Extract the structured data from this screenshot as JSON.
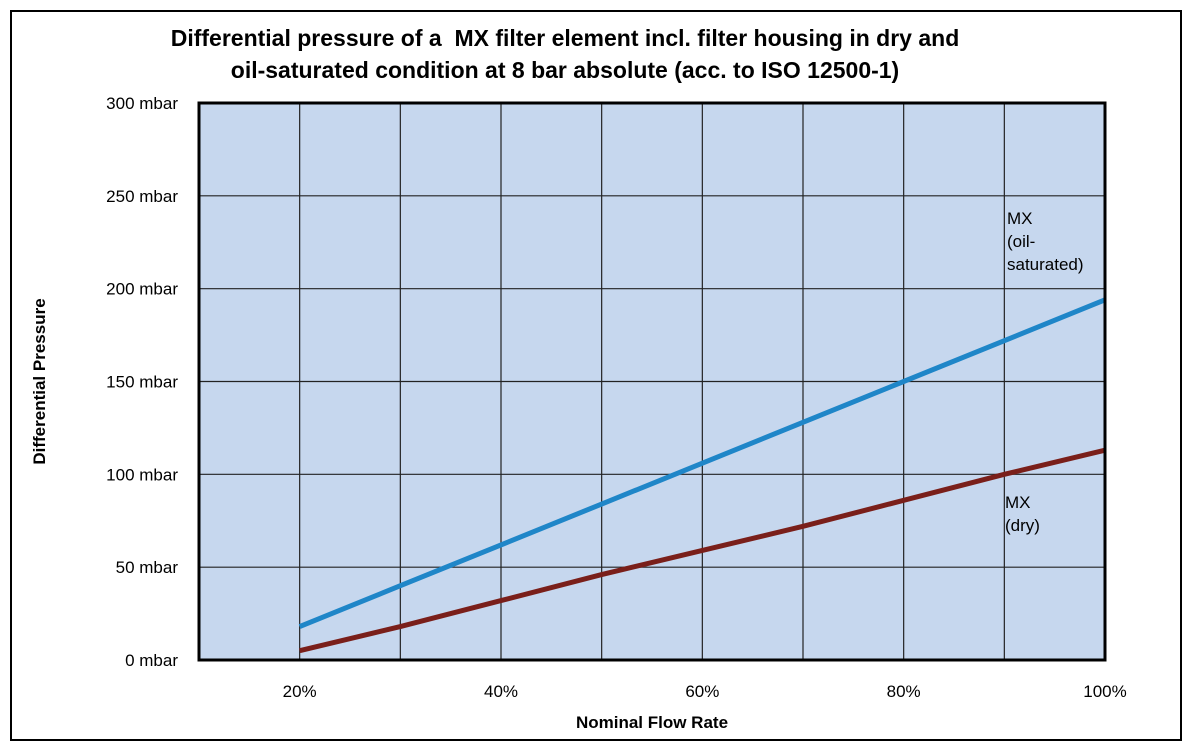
{
  "chart_data": {
    "type": "line",
    "title_lines": [
      "Differential pressure of a  MX filter element incl. filter housing in dry and",
      "oil-saturated condition at 8 bar absolute (acc. to ISO 12500-1)"
    ],
    "xlabel": "Nominal Flow Rate",
    "ylabel": "Differential Pressure",
    "xlim": [
      10,
      100
    ],
    "ylim": [
      0,
      300
    ],
    "x_ticks": [
      20,
      40,
      60,
      80,
      100
    ],
    "x_tick_labels": [
      "20%",
      "40%",
      "60%",
      "80%",
      "100%"
    ],
    "y_ticks": [
      0,
      50,
      100,
      150,
      200,
      250,
      300
    ],
    "y_tick_labels": [
      "0 mbar",
      "50 mbar",
      "100 mbar",
      "150 mbar",
      "200 mbar",
      "250 mbar",
      "300 mbar"
    ],
    "grid": true,
    "plot_background": "#c6d7ee",
    "series": [
      {
        "label_lines": [
          "MX",
          "(oil-",
          "saturated)"
        ],
        "color": "#1f86c8",
        "x": [
          20,
          30,
          40,
          50,
          60,
          70,
          80,
          90,
          100
        ],
        "y": [
          18,
          40,
          62,
          84,
          106,
          128,
          150,
          172,
          194
        ]
      },
      {
        "label_lines": [
          "MX",
          "(dry)"
        ],
        "color": "#7a1f1a",
        "x": [
          20,
          30,
          40,
          50,
          60,
          70,
          80,
          90,
          100
        ],
        "y": [
          5,
          18,
          32,
          46,
          59,
          72,
          86,
          100,
          113
        ]
      }
    ]
  }
}
